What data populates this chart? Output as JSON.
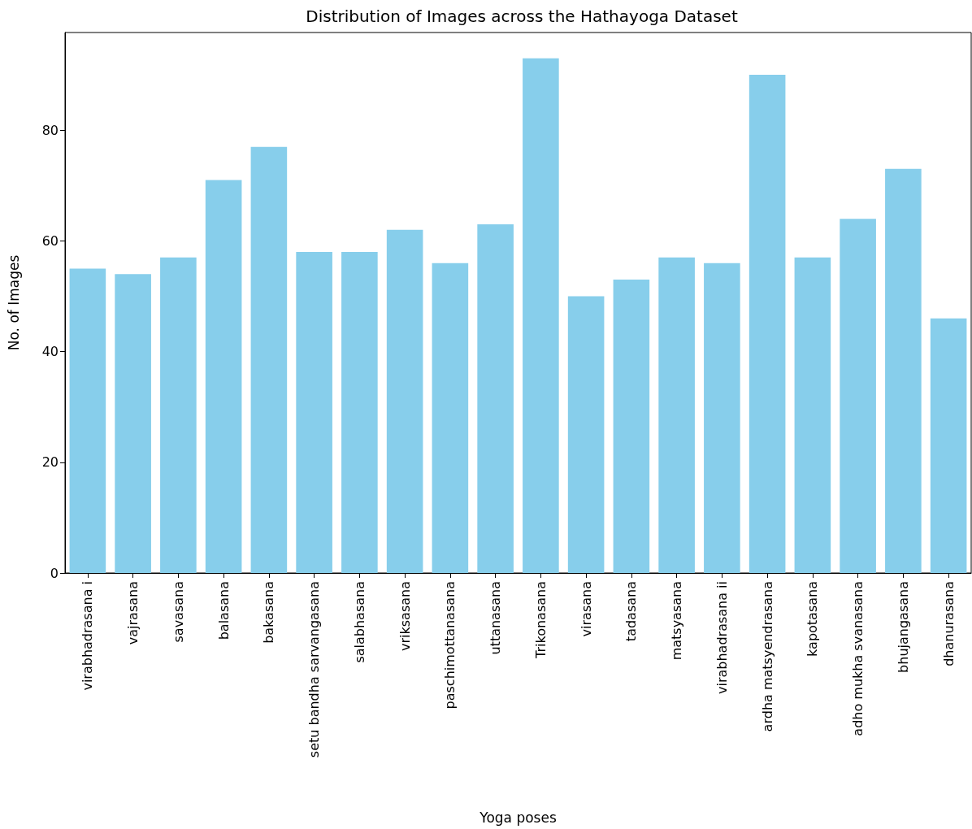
{
  "chart_data": {
    "type": "bar",
    "title": "Distribution of Images across the Hathayoga Dataset",
    "xlabel": "Yoga poses",
    "ylabel": "No. of Images",
    "categories": [
      "virabhadrasana i",
      "vajrasana",
      "savasana",
      "balasana",
      "bakasana",
      "setu bandha sarvangasana",
      "salabhasana",
      "vriksasana",
      "paschimottanasana",
      "uttanasana",
      "Trikonasana",
      "virasana",
      "tadasana",
      "matsyasana",
      "virabhadrasana ii",
      "ardha matsyendrasana",
      "kapotasana",
      "adho mukha svanasana",
      "bhujangasana",
      "dhanurasana"
    ],
    "values": [
      55,
      54,
      57,
      71,
      77,
      58,
      58,
      62,
      56,
      63,
      93,
      50,
      53,
      57,
      56,
      90,
      57,
      64,
      73,
      46
    ],
    "color": "#87ceeb",
    "ylim": [
      0,
      97.65
    ],
    "yticks": [
      0,
      20,
      40,
      60,
      80
    ],
    "grid": false
  }
}
